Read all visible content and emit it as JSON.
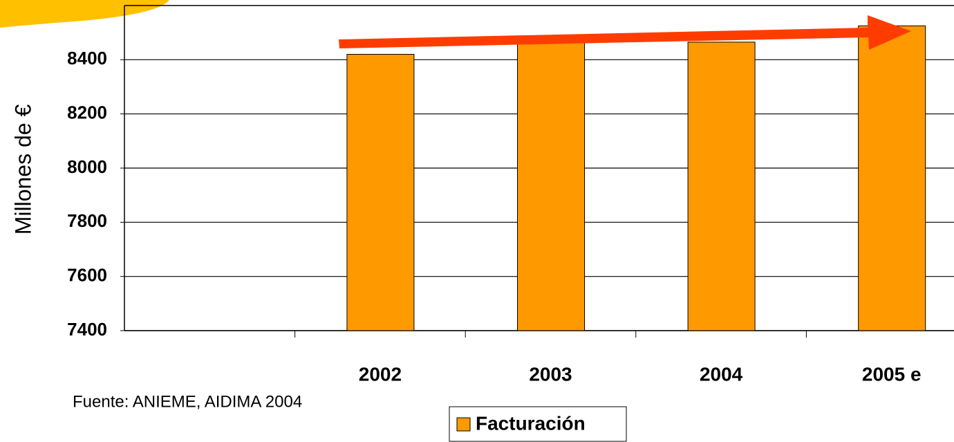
{
  "chart_data": {
    "type": "bar",
    "y_label": "Millones de €",
    "source": "Fuente: ANIEME, AIDIMA  2004",
    "categories": [
      null,
      "2002",
      "2003",
      "2004",
      "2005 e"
    ],
    "series": [
      {
        "name": "Facturación",
        "color": "#ff9900",
        "values": [
          null,
          8420,
          8470,
          8465,
          8525
        ]
      }
    ],
    "ylim": [
      7400,
      8600
    ],
    "yticks": [
      7400,
      7600,
      7800,
      8000,
      8200,
      8400
    ],
    "grid": true,
    "legend": "bottom"
  }
}
